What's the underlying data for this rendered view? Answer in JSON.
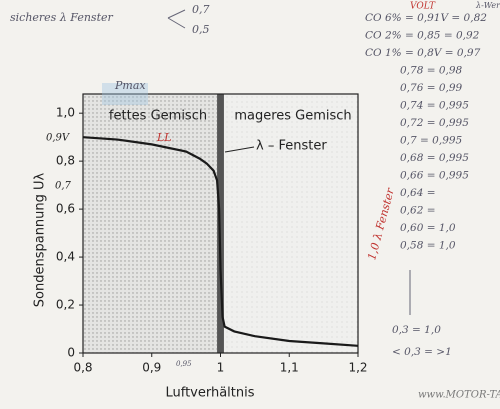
{
  "chart_data": {
    "type": "line",
    "x_label": "Luftverhältnis",
    "y_label": "Sondenspannung Uλ",
    "xlim": [
      0.8,
      1.2
    ],
    "xticks": [
      {
        "value": 0.8,
        "label": "0,8"
      },
      {
        "value": 0.9,
        "label": "0,9"
      },
      1,
      {
        "value": 1.1,
        "label": "1,1"
      },
      {
        "value": 1.2,
        "label": "1,2"
      }
    ],
    "ylim": [
      0,
      1.08
    ],
    "yticks": [
      0,
      {
        "value": 0.2,
        "label": "0,2"
      },
      {
        "value": 0.4,
        "label": "0,4"
      },
      {
        "value": 0.6,
        "label": "0,6"
      },
      {
        "value": 0.8,
        "label": "0,8"
      },
      {
        "value": 1.0,
        "label": "1,0"
      }
    ],
    "grid": false,
    "lambda_window": [
      0.995,
      1.005
    ],
    "annotations": [
      "fettes Gemisch",
      "mageres Gemisch",
      "λ – Fenster"
    ],
    "series": [
      {
        "name": "Sondenspannung",
        "color": "#1a1a1a",
        "x": [
          0.8,
          0.85,
          0.9,
          0.95,
          0.97,
          0.98,
          0.99,
          0.995,
          0.998,
          1.0,
          1.003,
          1.006,
          1.02,
          1.05,
          1.1,
          1.15,
          1.2
        ],
        "values": [
          0.9,
          0.89,
          0.87,
          0.84,
          0.81,
          0.79,
          0.76,
          0.72,
          0.6,
          0.35,
          0.15,
          0.11,
          0.09,
          0.07,
          0.05,
          0.04,
          0.03
        ]
      }
    ]
  },
  "handwritten": {
    "top_left": [
      "sicheres λ Fenster",
      "0,7",
      "0,5"
    ],
    "on_chart": [
      "Pmax",
      "0,9V",
      "0,7",
      "LL",
      "0,95"
    ],
    "right_header": [
      "VOLT",
      "λ-Wert"
    ],
    "right_notes": [
      "CO 6% = 0,91V = 0,82",
      "CO 2% = 0,85 = 0,92",
      "CO 1% = 0,8V = 0,97",
      "0,78 = 0,98",
      "0,76 = 0,99",
      "0,74 = 0,995",
      "0,72 = 0,995",
      "0,7 = 0,995",
      "0,68 = 0,995",
      "0,66 = 0,995",
      "0,64 =",
      "0,62 =",
      "0,60 = 1,0",
      "0,58 = 1,0",
      "0,3 = 1,0",
      "< 0,3 = >1"
    ],
    "vertical": "1,0 λ Fenster",
    "watermark": "www.MOTOR-TALK.de"
  }
}
